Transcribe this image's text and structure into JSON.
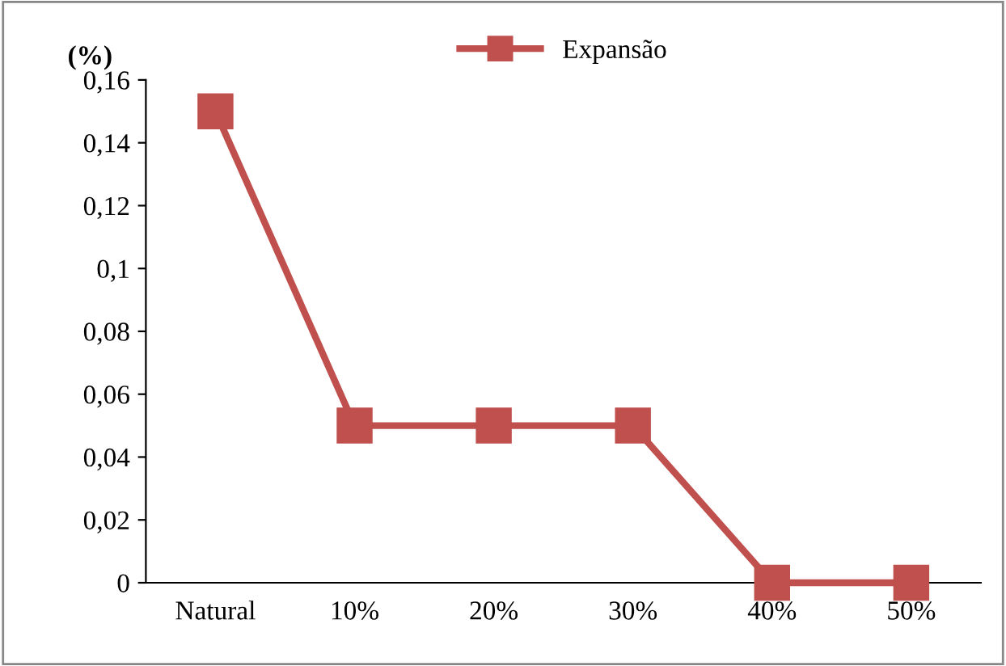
{
  "chart_data": {
    "type": "line",
    "categories": [
      "Natural",
      "10%",
      "20%",
      "30%",
      "40%",
      "50%"
    ],
    "series": [
      {
        "name": "Expansão",
        "color": "#c0504d",
        "values": [
          0.15,
          0.05,
          0.05,
          0.05,
          0,
          0
        ]
      }
    ],
    "ylabel": "(%)",
    "ylim": [
      0,
      0.16
    ],
    "yticks": [
      0,
      {
        "value": 0.02,
        "label": "0,02"
      },
      {
        "value": 0.04,
        "label": "0,04"
      },
      {
        "value": 0.06,
        "label": "0,06"
      },
      {
        "value": 0.08,
        "label": "0,08"
      },
      {
        "value": 0.1,
        "label": "0,1"
      },
      {
        "value": 0.12,
        "label": "0,12"
      },
      {
        "value": 0.14,
        "label": "0,14"
      },
      {
        "value": 0.16,
        "label": "0,16"
      }
    ],
    "grid": false,
    "legend": "top",
    "marker": "square",
    "line_style": "solid"
  }
}
